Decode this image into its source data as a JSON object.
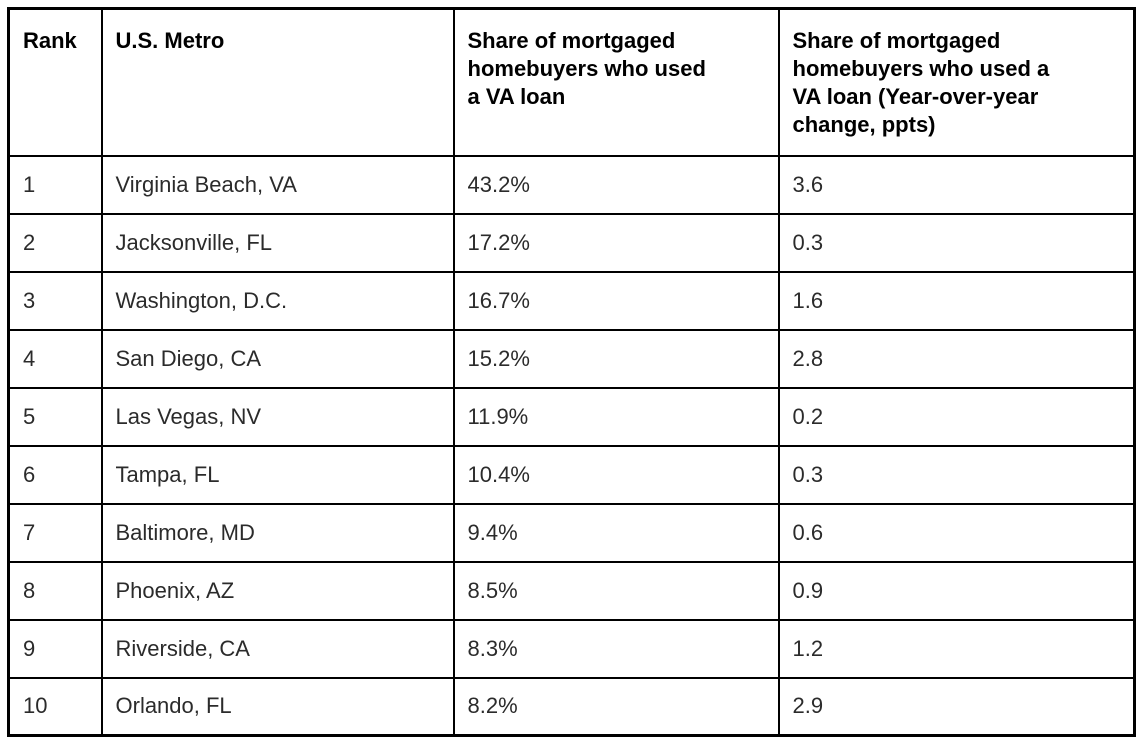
{
  "colors": {
    "background": "#ffffff",
    "border": "#000000",
    "header_text": "#000000",
    "body_text": "#2b2b2b"
  },
  "table": {
    "columns": [
      {
        "id": "rank",
        "label": "Rank"
      },
      {
        "id": "metro",
        "label": "U.S. Metro"
      },
      {
        "id": "share",
        "label": "Share of mortgaged\nhomebuyers who used\na VA loan"
      },
      {
        "id": "yoy",
        "label": "Share of mortgaged\nhomebuyers who used a\nVA loan (Year-over-year\nchange, ppts)"
      }
    ],
    "rows": [
      {
        "rank": "1",
        "metro": "Virginia Beach, VA",
        "share": "43.2%",
        "yoy": "3.6"
      },
      {
        "rank": "2",
        "metro": "Jacksonville, FL",
        "share": "17.2%",
        "yoy": "0.3"
      },
      {
        "rank": "3",
        "metro": "Washington, D.C.",
        "share": "16.7%",
        "yoy": "1.6"
      },
      {
        "rank": "4",
        "metro": "San Diego, CA",
        "share": "15.2%",
        "yoy": "2.8"
      },
      {
        "rank": "5",
        "metro": "Las Vegas, NV",
        "share": "11.9%",
        "yoy": "0.2"
      },
      {
        "rank": "6",
        "metro": "Tampa, FL",
        "share": "10.4%",
        "yoy": "0.3"
      },
      {
        "rank": "7",
        "metro": "Baltimore, MD",
        "share": "9.4%",
        "yoy": "0.6"
      },
      {
        "rank": "8",
        "metro": "Phoenix, AZ",
        "share": "8.5%",
        "yoy": "0.9"
      },
      {
        "rank": "9",
        "metro": "Riverside, CA",
        "share": "8.3%",
        "yoy": "1.2"
      },
      {
        "rank": "10",
        "metro": "Orlando, FL",
        "share": "8.2%",
        "yoy": "2.9"
      }
    ]
  },
  "chart_data": {
    "type": "table",
    "columns": [
      "Rank",
      "U.S. Metro",
      "Share of mortgaged homebuyers who used a VA loan",
      "Share of mortgaged homebuyers who used a VA loan (Year-over-year change, ppts)"
    ],
    "rows": [
      [
        1,
        "Virginia Beach, VA",
        "43.2%",
        3.6
      ],
      [
        2,
        "Jacksonville, FL",
        "17.2%",
        0.3
      ],
      [
        3,
        "Washington, D.C.",
        "16.7%",
        1.6
      ],
      [
        4,
        "San Diego, CA",
        "15.2%",
        2.8
      ],
      [
        5,
        "Las Vegas, NV",
        "11.9%",
        0.2
      ],
      [
        6,
        "Tampa, FL",
        "10.4%",
        0.3
      ],
      [
        7,
        "Baltimore, MD",
        "9.4%",
        0.6
      ],
      [
        8,
        "Phoenix, AZ",
        "8.5%",
        0.9
      ],
      [
        9,
        "Riverside, CA",
        "8.3%",
        1.2
      ],
      [
        10,
        "Orlando, FL",
        "8.2%",
        2.9
      ]
    ]
  }
}
